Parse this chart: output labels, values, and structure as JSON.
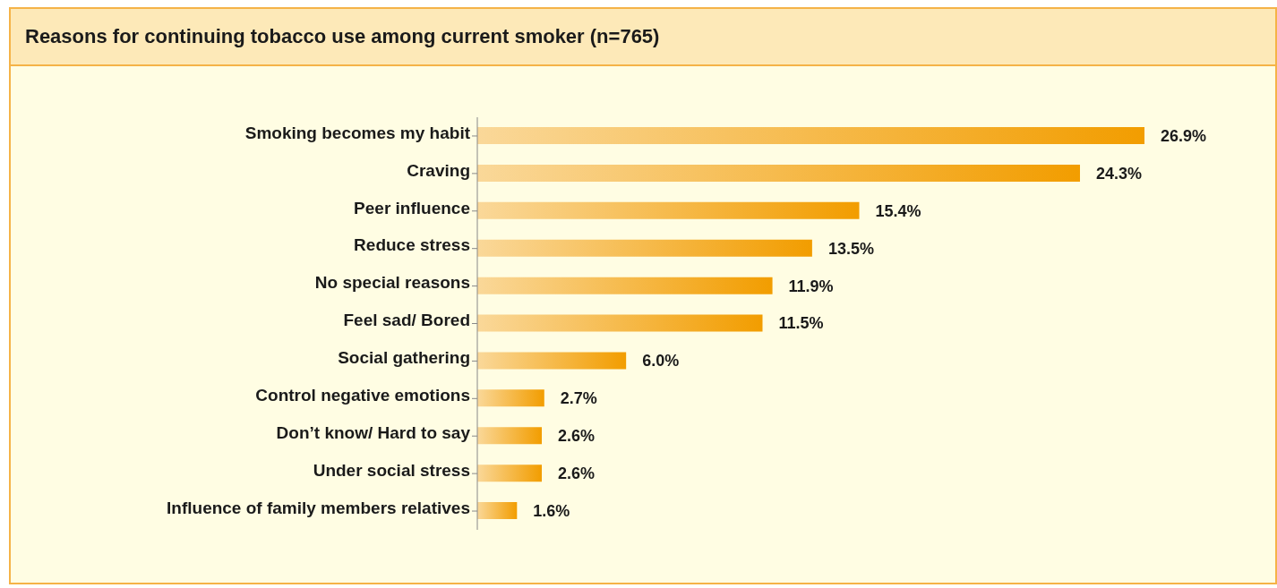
{
  "chart_data": {
    "type": "bar",
    "orientation": "horizontal",
    "title": "Reasons for continuing tobacco use among current smoker (n=765)",
    "categories": [
      "Smoking becomes my habit",
      "Craving",
      "Peer influence",
      "Reduce stress",
      "No special reasons",
      "Feel sad/ Bored",
      "Social gathering",
      "Control negative emotions",
      "Don’t know/ Hard to say",
      "Under social stress",
      "Influence of family members relatives"
    ],
    "values": [
      26.9,
      24.3,
      15.4,
      13.5,
      11.9,
      11.5,
      6.0,
      2.7,
      2.6,
      2.6,
      1.6
    ],
    "value_labels": [
      "26.9%",
      "24.3%",
      "15.4%",
      "13.5%",
      "11.9%",
      "11.5%",
      "6.0%",
      "2.7%",
      "2.6%",
      "2.6%",
      "1.6%"
    ],
    "color": "#f29d00",
    "grid": false,
    "legend": false
  }
}
